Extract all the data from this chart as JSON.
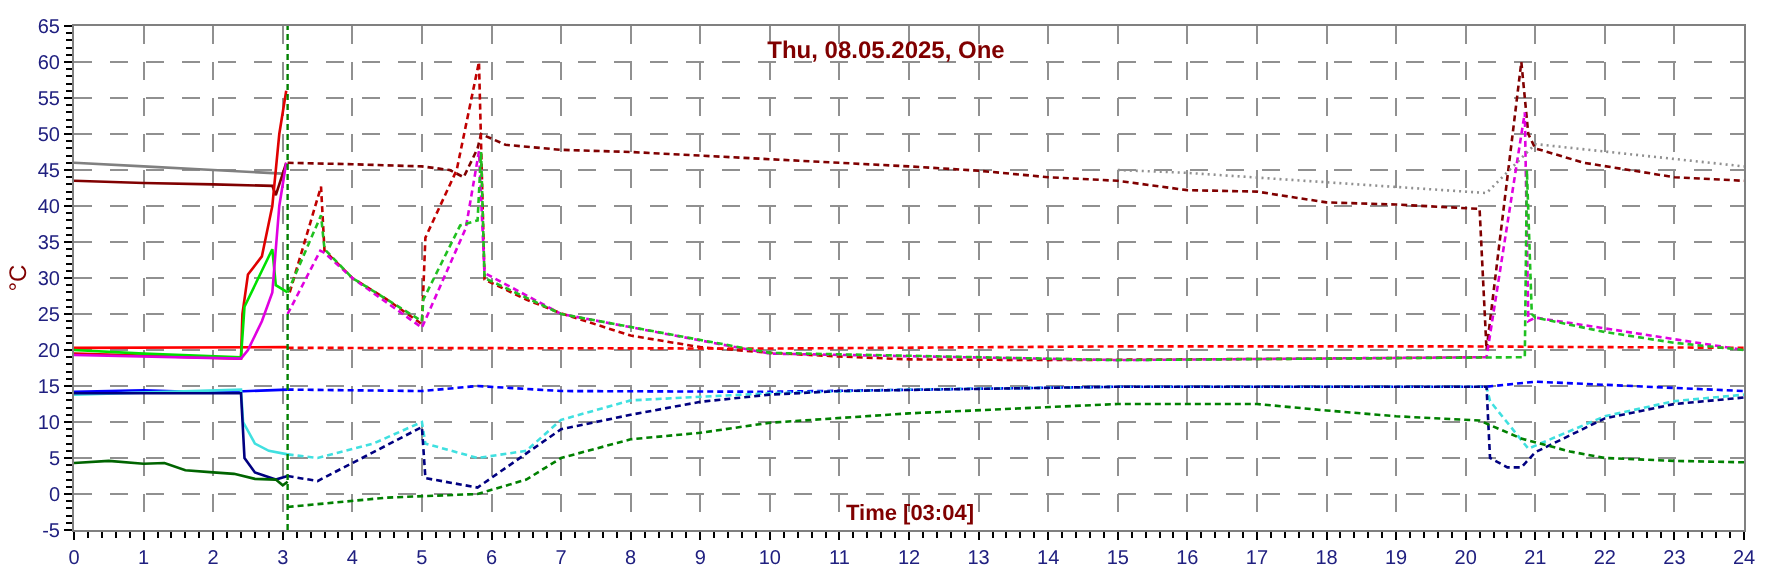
{
  "chart_data": {
    "type": "line",
    "title": "Thu, 08.05.2025, One",
    "xlabel": "Time [03:04]",
    "ylabel": "°C",
    "xlim": [
      0,
      24
    ],
    "xticks": [
      0,
      1,
      2,
      3,
      4,
      5,
      6,
      7,
      8,
      9,
      10,
      11,
      12,
      13,
      14,
      15,
      16,
      17,
      18,
      19,
      20,
      21,
      22,
      23,
      24
    ],
    "ylim": [
      -5,
      65
    ],
    "yticks": [
      -5,
      0,
      5,
      10,
      15,
      20,
      25,
      30,
      35,
      40,
      45,
      50,
      55,
      60,
      65
    ],
    "grid": true,
    "marker": "none",
    "ref_lines": [
      {
        "axis": "x",
        "value": 3.07,
        "color": "#008000",
        "line_style": "dashed"
      }
    ],
    "series": [
      {
        "color": "#808080",
        "line_style": "solid",
        "x": [
          0,
          1,
          2,
          3.0
        ],
        "values": [
          46,
          45.5,
          45,
          44.5
        ]
      },
      {
        "color": "#800000",
        "line_style": "solid",
        "x": [
          0,
          1,
          2,
          2.85,
          2.9,
          3.05
        ],
        "values": [
          43.5,
          43.2,
          43,
          42.8,
          41.5,
          46
        ]
      },
      {
        "color": "#e00000",
        "line_style": "solid",
        "x": [
          0,
          2.4,
          2.42,
          2.5,
          2.7,
          2.85,
          2.95,
          3.05
        ],
        "values": [
          19.5,
          18.8,
          25,
          30.5,
          33,
          40,
          50,
          56
        ]
      },
      {
        "color": "#ff0000",
        "line_style": "solid",
        "x": [
          0,
          3.07
        ],
        "values": [
          20.3,
          20.4
        ]
      },
      {
        "color": "#00e000",
        "line_style": "solid",
        "x": [
          0,
          1,
          2.4,
          2.45,
          2.7,
          2.85,
          2.9,
          3.07
        ],
        "values": [
          20,
          19.5,
          19,
          26,
          31,
          34,
          29,
          28
        ]
      },
      {
        "color": "#e000e0",
        "line_style": "solid",
        "x": [
          0,
          2.4,
          2.5,
          2.7,
          2.85,
          2.95,
          3.05
        ],
        "values": [
          19.3,
          18.8,
          20,
          24,
          28,
          40,
          46
        ]
      },
      {
        "color": "#0000ff",
        "line_style": "solid",
        "x": [
          0,
          1,
          2,
          3.07
        ],
        "values": [
          14.2,
          14.4,
          14.1,
          14.5
        ]
      },
      {
        "color": "#40e0e0",
        "line_style": "solid",
        "x": [
          0,
          2.4,
          2.43,
          2.6,
          2.8,
          3.07
        ],
        "values": [
          13.8,
          14.5,
          10,
          7,
          6,
          5.5
        ]
      },
      {
        "color": "#000080",
        "line_style": "solid",
        "x": [
          0,
          2.4,
          2.45,
          2.6,
          2.9,
          3.07
        ],
        "values": [
          14,
          14,
          5,
          3,
          2,
          2.5
        ]
      },
      {
        "color": "#006400",
        "line_style": "solid",
        "x": [
          0,
          0.5,
          1,
          1.3,
          1.6,
          2,
          2.3,
          2.6,
          2.9,
          3.0,
          3.07
        ],
        "values": [
          4.3,
          4.6,
          4.2,
          4.3,
          3.3,
          3,
          2.8,
          2.1,
          2,
          1.2,
          1.7
        ]
      },
      {
        "color": "#800000",
        "line_style": "dashed",
        "x": [
          3.07,
          4,
          5,
          5.4,
          5.6,
          5.8,
          5.85,
          6.2,
          7,
          8,
          9,
          10,
          11,
          12,
          13,
          14,
          15,
          16,
          17,
          18,
          19,
          20.2,
          20.3,
          20.8,
          20.9,
          21,
          21.7,
          23,
          24
        ],
        "values": [
          46,
          45.8,
          45.5,
          45,
          44,
          48,
          50,
          48.5,
          47.8,
          47.5,
          47,
          46.5,
          46,
          45.5,
          44.9,
          44,
          43.5,
          42.2,
          42,
          40.5,
          40.2,
          39.6,
          20,
          60,
          50,
          48,
          46,
          44,
          43.5
        ]
      },
      {
        "color": "#c00000",
        "line_style": "dashed",
        "x": [
          3.1,
          3.55,
          3.6,
          4,
          4.5,
          5.0,
          5.05,
          5.5,
          5.82,
          5.9,
          6.5,
          7,
          8,
          9,
          10,
          11,
          12,
          14,
          16,
          18,
          20.3
        ],
        "values": [
          28,
          42.7,
          33.8,
          30,
          27,
          23.6,
          35.6,
          45,
          60,
          29.8,
          27,
          25.1,
          22,
          20.4,
          19.6,
          19.1,
          18.7,
          18.6,
          18.7,
          18.8,
          19
        ]
      },
      {
        "color": "#ff0000",
        "line_style": "dashed",
        "x": [
          3.07,
          10,
          15,
          20,
          24
        ],
        "values": [
          20.3,
          20.2,
          20.5,
          20.5,
          20.3
        ]
      },
      {
        "color": "#e000e0",
        "line_style": "dashed",
        "x": [
          3.07,
          3.54,
          3.6,
          4,
          5,
          5.63,
          5.82,
          5.9,
          7,
          10,
          15,
          20.3,
          20.85,
          20.9,
          21,
          24
        ],
        "values": [
          25,
          33.8,
          33.5,
          30,
          23.1,
          36.9,
          47.6,
          30.7,
          25,
          19.5,
          18.6,
          19,
          53,
          24,
          24.5,
          20
        ]
      },
      {
        "color": "#20c020",
        "line_style": "dashed",
        "x": [
          3.07,
          3.55,
          3.6,
          4,
          5,
          5.02,
          5.55,
          5.8,
          5.85,
          5.9,
          7,
          10,
          15,
          20.85,
          20.88,
          20.95,
          21,
          22,
          23,
          24
        ],
        "values": [
          28,
          38.7,
          34,
          30,
          24,
          27,
          37.3,
          38,
          47.5,
          30,
          25,
          19.6,
          18.6,
          19,
          45,
          25,
          24.5,
          22.5,
          21,
          20
        ]
      },
      {
        "color": "#0000ff",
        "line_style": "dashed",
        "x": [
          3.07,
          5,
          5.8,
          7,
          10,
          15,
          20.3,
          21,
          24
        ],
        "values": [
          14.5,
          14.3,
          15,
          14.3,
          14.2,
          14.9,
          14.9,
          15.6,
          14.3
        ]
      },
      {
        "color": "#40e0e0",
        "line_style": "dashed",
        "x": [
          3.07,
          3.5,
          4.3,
          5.0,
          5.05,
          5.8,
          6.5,
          7,
          8,
          10,
          12,
          15,
          20.3,
          20.35,
          20.9,
          22,
          23,
          24
        ],
        "values": [
          5.5,
          5,
          7,
          10,
          7,
          5,
          6,
          10.3,
          13,
          14,
          14.5,
          14.9,
          14.9,
          12.9,
          6.3,
          10.8,
          12.9,
          13.8
        ]
      },
      {
        "color": "#000080",
        "line_style": "dashed",
        "x": [
          3.07,
          3.5,
          5.0,
          5.05,
          5.8,
          7,
          8,
          9,
          10,
          11,
          15,
          20.3,
          20.35,
          20.6,
          20.8,
          21,
          22,
          23,
          24
        ],
        "values": [
          2.5,
          1.8,
          9.3,
          2.2,
          0.9,
          9,
          11,
          12.8,
          13.8,
          14.3,
          14.9,
          14.9,
          5,
          3.7,
          3.7,
          5.8,
          10.5,
          12.5,
          13.4
        ]
      },
      {
        "color": "#008000",
        "line_style": "dashed",
        "x": [
          3.07,
          4.5,
          5.8,
          6.5,
          7,
          8,
          9,
          10,
          12,
          15,
          17,
          18,
          19,
          20.2,
          20.8,
          21.5,
          22,
          23,
          24
        ],
        "values": [
          -1.8,
          -0.5,
          0,
          2,
          5,
          7.6,
          8.5,
          9.9,
          11.2,
          12.5,
          12.5,
          11.6,
          10.8,
          10.2,
          7.7,
          5.9,
          5,
          4.6,
          4.4
        ]
      },
      {
        "color": "#909090",
        "line_style": "dotted",
        "x": [
          15,
          16,
          20.3,
          21,
          24
        ],
        "values": [
          45,
          44.6,
          41.8,
          48.6,
          45.5
        ]
      }
    ]
  }
}
